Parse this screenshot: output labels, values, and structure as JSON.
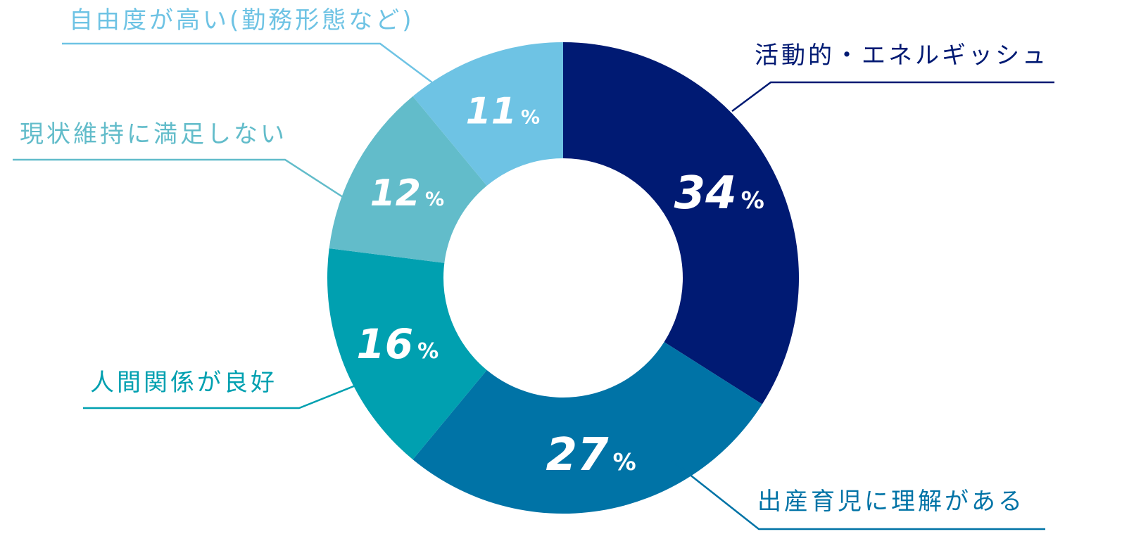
{
  "chart_data": {
    "type": "pie",
    "donut": true,
    "percent_sign": "%",
    "slices": [
      {
        "label": "活動的・エネルギッシュ",
        "value": 34,
        "color": "#001a73"
      },
      {
        "label": "出産育児に理解がある",
        "value": 27,
        "color": "#0073a6"
      },
      {
        "label": "人間関係が良好",
        "value": 16,
        "color": "#00a0b0"
      },
      {
        "label": "現状維持に満足しない",
        "value": 12,
        "color": "#62bcca"
      },
      {
        "label": "自由度が高い(勤務形態など)",
        "value": 11,
        "color": "#6ec3e4"
      }
    ]
  }
}
